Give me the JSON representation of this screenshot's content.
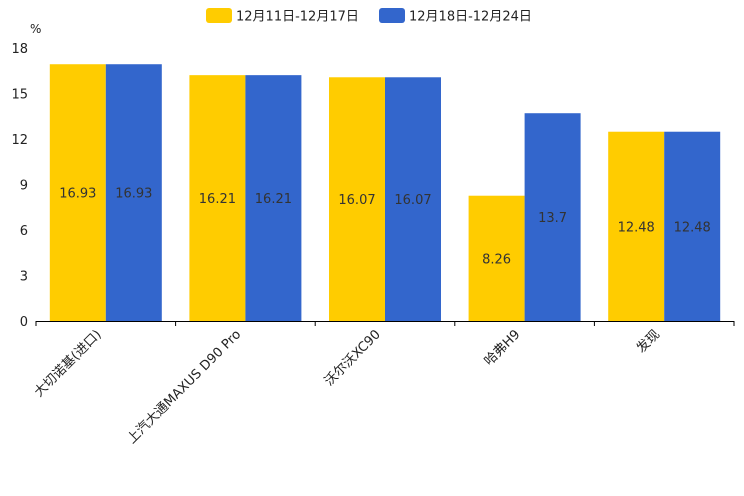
{
  "chart_data": {
    "type": "bar",
    "unit": "%",
    "categories": [
      "大切诺基(进口)",
      "上汽大通MAXUS D90 Pro",
      "沃尔沃XC90",
      "哈弗H9",
      "发现"
    ],
    "series": [
      {
        "name": "12月11日-12月17日",
        "values": [
          16.93,
          16.21,
          16.07,
          8.26,
          12.48
        ],
        "labels": [
          "16.93",
          "16.21",
          "16.07",
          "8.26",
          "12.48"
        ],
        "color": "#FFCC00"
      },
      {
        "name": "12月18日-12月24日",
        "values": [
          16.93,
          16.21,
          16.07,
          13.7,
          12.48
        ],
        "labels": [
          "16.93",
          "16.21",
          "16.07",
          "13.7",
          "12.48"
        ],
        "color": "#3366CC"
      }
    ],
    "yticks": [
      "0",
      "3",
      "6",
      "9",
      "12",
      "15",
      "18"
    ],
    "ylim": [
      0,
      18
    ],
    "legend_position": "top-center",
    "grid": false
  }
}
